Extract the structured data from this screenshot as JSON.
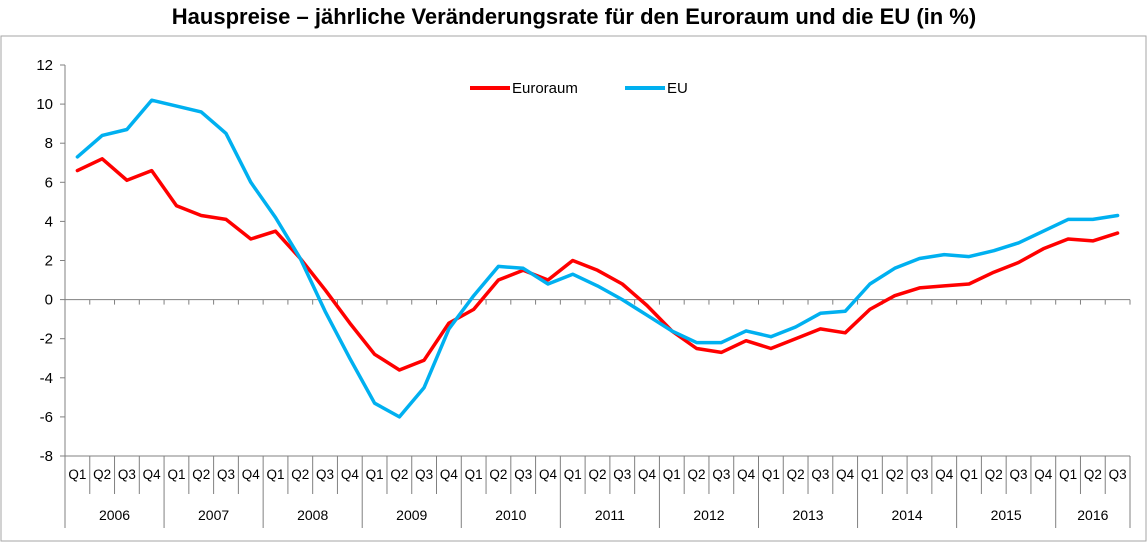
{
  "chart_data": {
    "type": "line",
    "title": "Hauspreise – jährliche Veränderungsrate für den Euroraum und die EU (in %)",
    "ylim": [
      -8,
      12
    ],
    "yticks": [
      -8,
      -6,
      -4,
      -2,
      0,
      2,
      4,
      6,
      8,
      10,
      12
    ],
    "grid": false,
    "legend": "top-center",
    "quarters": [
      "Q1",
      "Q2",
      "Q3",
      "Q4"
    ],
    "years": [
      "2006",
      "2007",
      "2008",
      "2009",
      "2010",
      "2011",
      "2012",
      "2013",
      "2014",
      "2015",
      "2016"
    ],
    "x": [
      "2006 Q1",
      "2006 Q2",
      "2006 Q3",
      "2006 Q4",
      "2007 Q1",
      "2007 Q2",
      "2007 Q3",
      "2007 Q4",
      "2008 Q1",
      "2008 Q2",
      "2008 Q3",
      "2008 Q4",
      "2009 Q1",
      "2009 Q2",
      "2009 Q3",
      "2009 Q4",
      "2010 Q1",
      "2010 Q2",
      "2010 Q3",
      "2010 Q4",
      "2011 Q1",
      "2011 Q2",
      "2011 Q3",
      "2011 Q4",
      "2012 Q1",
      "2012 Q2",
      "2012 Q3",
      "2012 Q4",
      "2013 Q1",
      "2013 Q2",
      "2013 Q3",
      "2013 Q4",
      "2014 Q1",
      "2014 Q2",
      "2014 Q3",
      "2014 Q4",
      "2015 Q1",
      "2015 Q2",
      "2015 Q3",
      "2015 Q4",
      "2016 Q1",
      "2016 Q2",
      "2016 Q3"
    ],
    "series": [
      {
        "name": "Euroraum",
        "color": "#ff0000",
        "values": [
          6.6,
          7.2,
          6.1,
          6.6,
          4.8,
          4.3,
          4.1,
          3.1,
          3.5,
          2.1,
          0.5,
          -1.2,
          -2.8,
          -3.6,
          -3.1,
          -1.2,
          -0.5,
          1.0,
          1.5,
          1.0,
          2.0,
          1.5,
          0.8,
          -0.3,
          -1.6,
          -2.5,
          -2.7,
          -2.1,
          -2.5,
          -2.0,
          -1.5,
          -1.7,
          -0.5,
          0.2,
          0.6,
          0.7,
          0.8,
          1.4,
          1.9,
          2.6,
          3.1,
          3.0,
          3.4
        ]
      },
      {
        "name": "EU",
        "color": "#00b0f0",
        "values": [
          7.3,
          8.4,
          8.7,
          10.2,
          9.9,
          9.6,
          8.5,
          6.0,
          4.2,
          2.1,
          -0.6,
          -3.0,
          -5.3,
          -6.0,
          -4.5,
          -1.5,
          0.2,
          1.7,
          1.6,
          0.8,
          1.3,
          0.7,
          0.0,
          -0.8,
          -1.6,
          -2.2,
          -2.2,
          -1.6,
          -1.9,
          -1.4,
          -0.7,
          -0.6,
          0.8,
          1.6,
          2.1,
          2.3,
          2.2,
          2.5,
          2.9,
          3.5,
          4.1,
          4.1,
          4.3
        ]
      }
    ]
  }
}
